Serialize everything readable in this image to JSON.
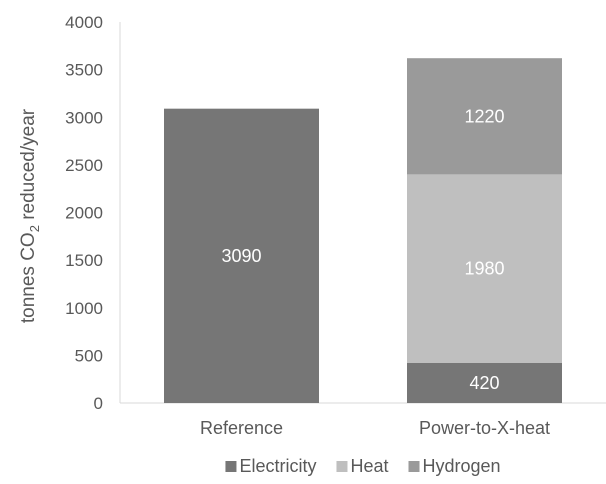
{
  "chart_data": {
    "type": "bar",
    "stacked": true,
    "categories": [
      "Reference",
      "Power-to-X-heat"
    ],
    "series": [
      {
        "name": "Electricity",
        "values": [
          3090,
          420
        ],
        "color": "#767676"
      },
      {
        "name": "Heat",
        "values": [
          0,
          1980
        ],
        "color": "#bfbfbf"
      },
      {
        "name": "Hydrogen",
        "values": [
          0,
          1220
        ],
        "color": "#9a9a9a"
      }
    ],
    "ylabel": {
      "pre": "tonnes CO",
      "sub": "2",
      "post": " reduced/year"
    },
    "ylim": [
      0,
      4000
    ],
    "yticks": [
      0,
      500,
      1000,
      1500,
      2000,
      2500,
      3000,
      3500,
      4000
    ],
    "grid": false,
    "legend_position": "bottom"
  }
}
